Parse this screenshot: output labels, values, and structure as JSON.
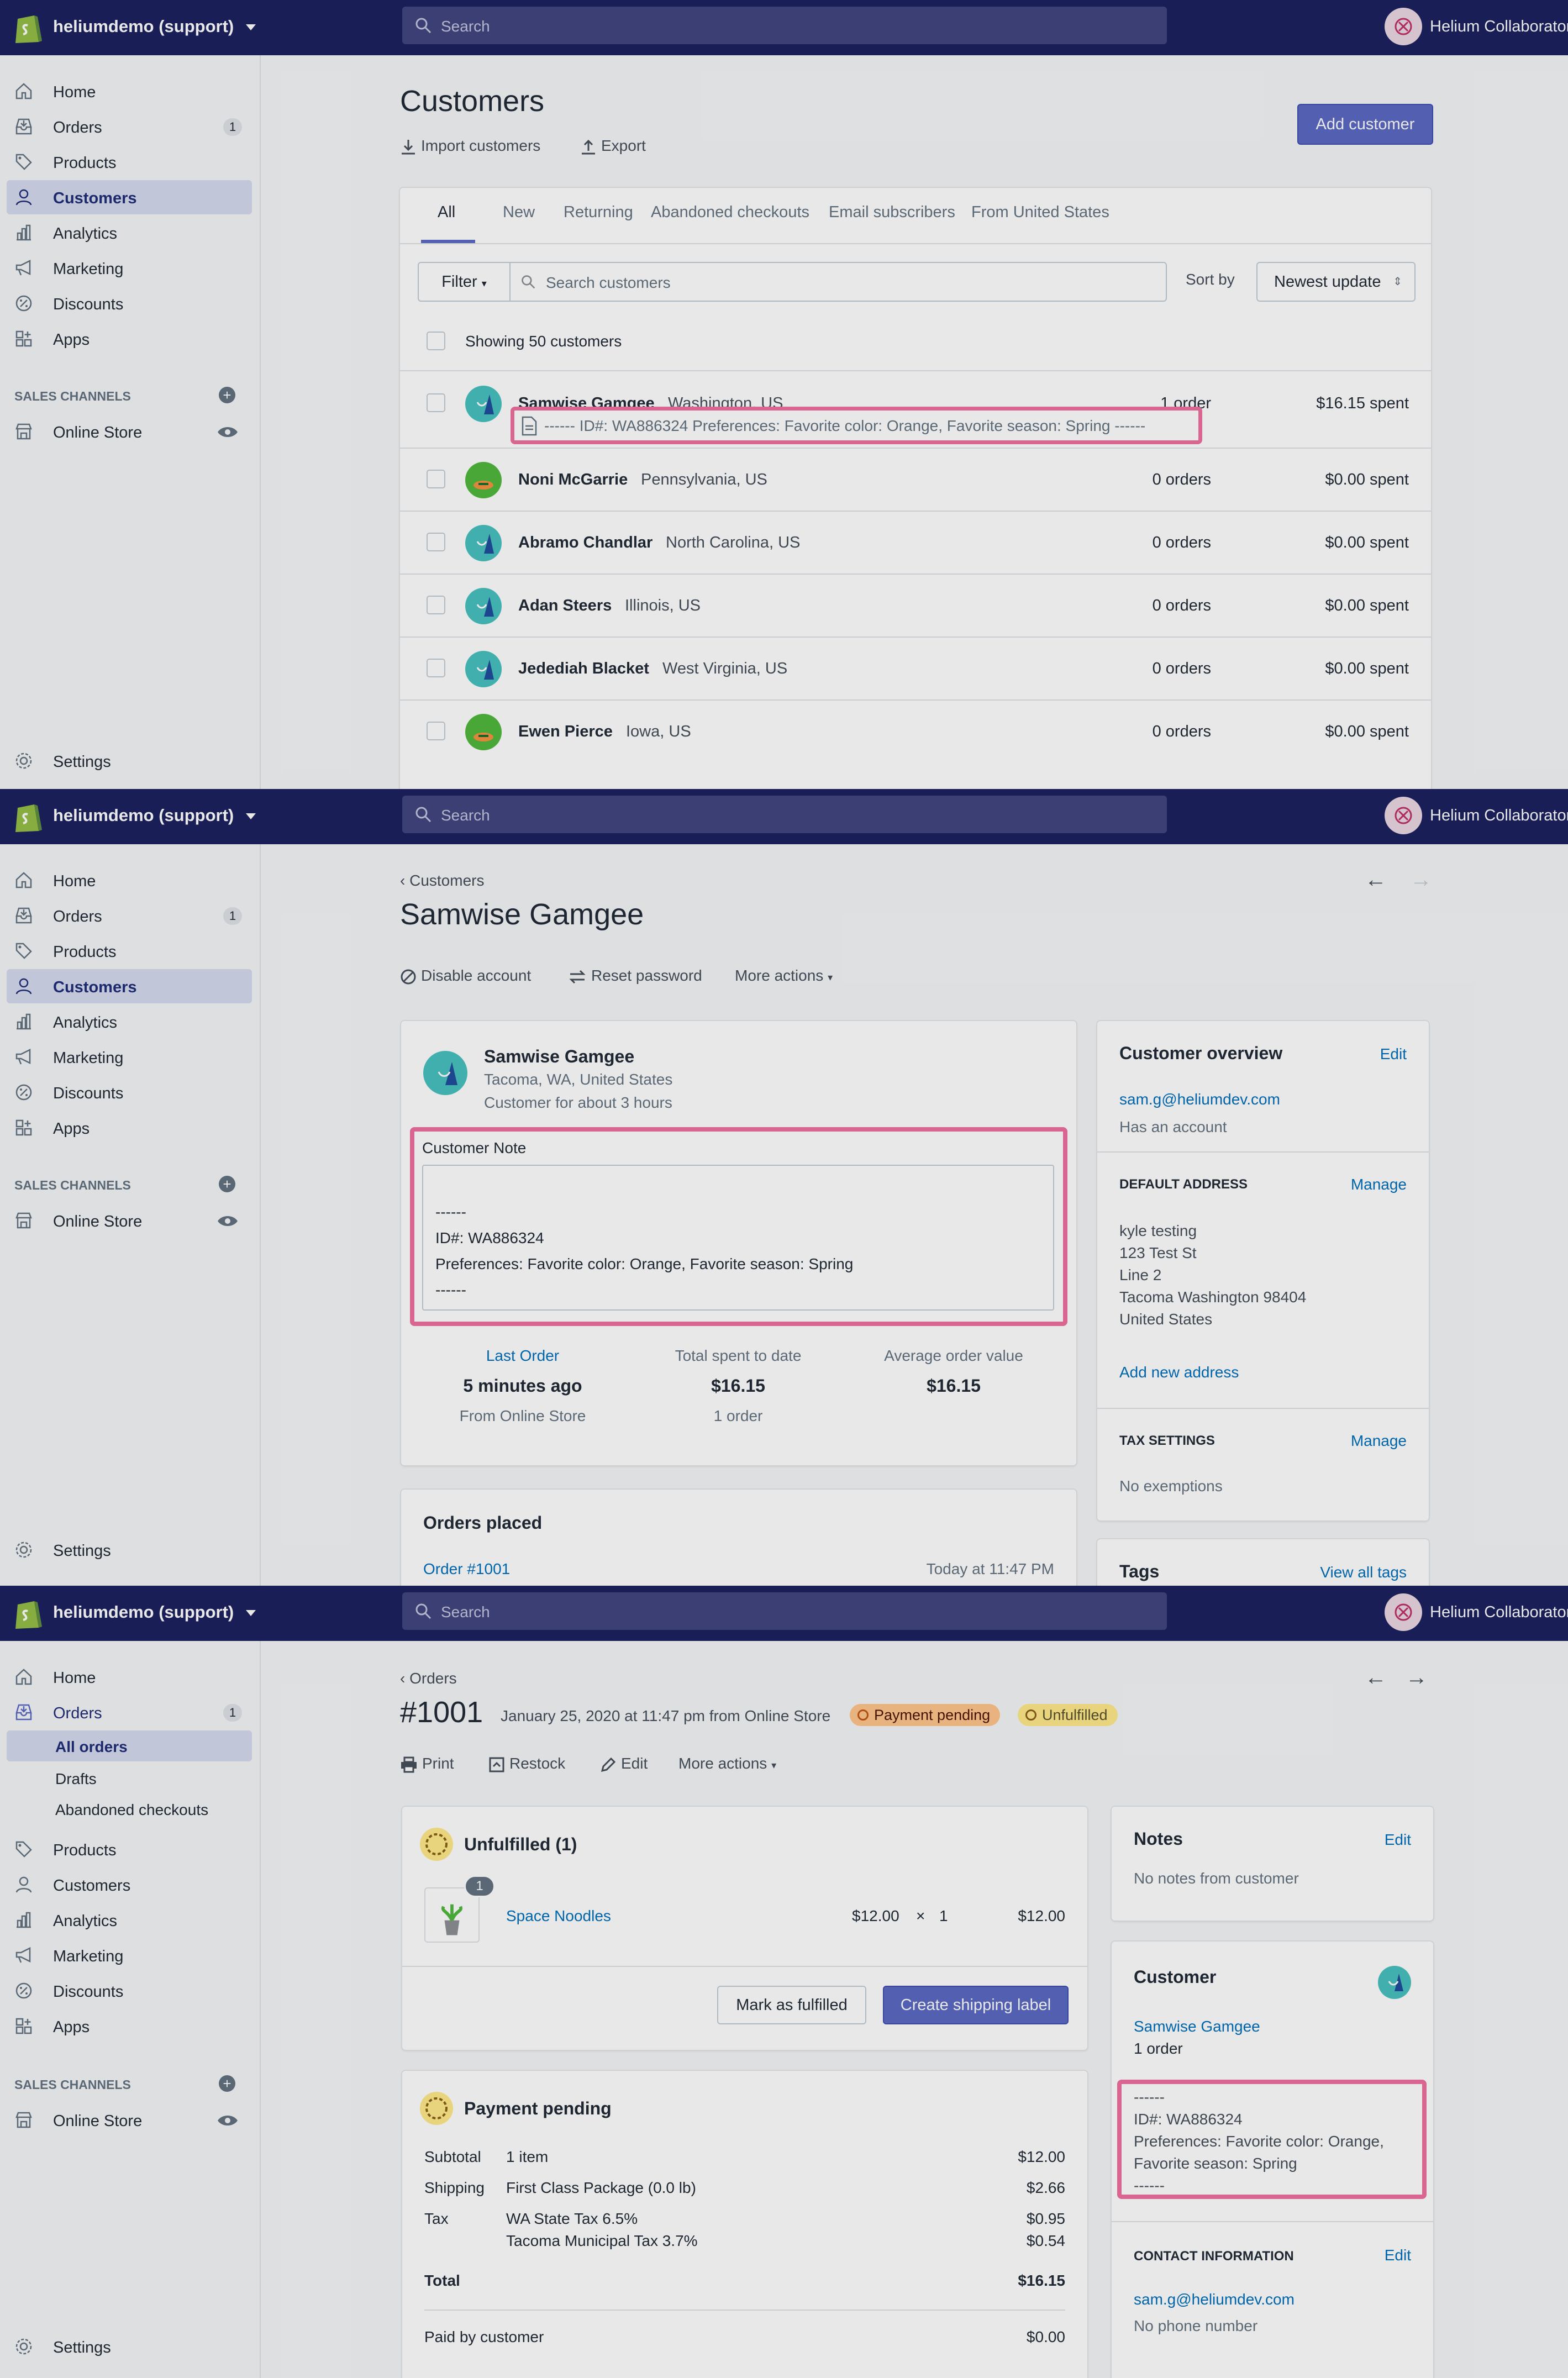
{
  "common": {
    "store_name": "heliumdemo (support)",
    "search_placeholder": "Search",
    "user_name": "Helium Collaborator",
    "sales_channels_heading": "SALES CHANNELS",
    "online_store": "Online Store",
    "settings": "Settings",
    "nav": {
      "home": "Home",
      "orders": "Orders",
      "orders_badge": "1",
      "products": "Products",
      "customers": "Customers",
      "analytics": "Analytics",
      "marketing": "Marketing",
      "discounts": "Discounts",
      "apps": "Apps",
      "all_orders": "All orders",
      "drafts": "Drafts",
      "abandoned_checkouts": "Abandoned checkouts"
    },
    "colors": {
      "topbar": "#1c2260",
      "primary": "#5c6ac4",
      "highlight": "#ef6fa0",
      "link": "#006fbb"
    }
  },
  "customers_list": {
    "title": "Customers",
    "import_label": "Import customers",
    "export_label": "Export",
    "add_button": "Add customer",
    "tabs": [
      "All",
      "New",
      "Returning",
      "Abandoned checkouts",
      "Email subscribers",
      "From United States"
    ],
    "filter_label": "Filter",
    "search_placeholder": "Search customers",
    "sort_by_label": "Sort by",
    "sort_value": "Newest update",
    "showing_text": "Showing 50 customers",
    "note_preview": "------ ID#: WA886324 Preferences: Favorite color: Orange, Favorite season: Spring ------",
    "rows": [
      {
        "name": "Samwise Gamgee",
        "location": "Washington, US",
        "orders": "1 order",
        "spent": "$16.15 spent",
        "avatar": "teal"
      },
      {
        "name": "Noni McGarrie",
        "location": "Pennsylvania, US",
        "orders": "0 orders",
        "spent": "$0.00 spent",
        "avatar": "green"
      },
      {
        "name": "Abramo Chandlar",
        "location": "North Carolina, US",
        "orders": "0 orders",
        "spent": "$0.00 spent",
        "avatar": "teal"
      },
      {
        "name": "Adan Steers",
        "location": "Illinois, US",
        "orders": "0 orders",
        "spent": "$0.00 spent",
        "avatar": "teal"
      },
      {
        "name": "Jedediah Blacket",
        "location": "West Virginia, US",
        "orders": "0 orders",
        "spent": "$0.00 spent",
        "avatar": "teal"
      },
      {
        "name": "Ewen Pierce",
        "location": "Iowa, US",
        "orders": "0 orders",
        "spent": "$0.00 spent",
        "avatar": "green"
      }
    ]
  },
  "customer_detail": {
    "breadcrumb": "Customers",
    "title": "Samwise Gamgee",
    "disable_account": "Disable account",
    "reset_password": "Reset password",
    "more_actions": "More actions",
    "name": "Samwise Gamgee",
    "location": "Tacoma, WA, United States",
    "since": "Customer for about 3 hours",
    "note_label": "Customer Note",
    "note_lines": [
      "------",
      "ID#: WA886324",
      "Preferences: Favorite color: Orange, Favorite season: Spring",
      "------"
    ],
    "stats": [
      {
        "label": "Last Order",
        "value": "5 minutes ago",
        "sub": "From Online Store"
      },
      {
        "label": "Total spent to date",
        "value": "$16.15",
        "sub": "1 order"
      },
      {
        "label": "Average order value",
        "value": "$16.15",
        "sub": ""
      }
    ],
    "orders_placed_title": "Orders placed",
    "order_link": "Order #1001",
    "order_time": "Today at 11:47 PM",
    "overview_title": "Customer overview",
    "edit": "Edit",
    "email": "sam.g@heliumdev.com",
    "has_account": "Has an account",
    "default_address_heading": "DEFAULT ADDRESS",
    "manage": "Manage",
    "address_lines": [
      "kyle testing",
      "123 Test St",
      "Line 2",
      "Tacoma Washington 98404",
      "United States"
    ],
    "add_address": "Add new address",
    "tax_heading": "TAX SETTINGS",
    "no_exemptions": "No exemptions",
    "tags_title": "Tags",
    "view_all_tags": "View all tags"
  },
  "order_detail": {
    "breadcrumb": "Orders",
    "title": "#1001",
    "subtitle": "January 25, 2020 at 11:47 pm from Online Store",
    "payment_badge": "Payment pending",
    "fulfill_badge": "Unfulfilled",
    "print": "Print",
    "restock": "Restock",
    "edit": "Edit",
    "more_actions": "More actions",
    "unfulfilled_title": "Unfulfilled (1)",
    "item_qty_badge": "1",
    "item_name": "Space Noodles",
    "item_price": "$12.00",
    "item_times": "×",
    "item_qty": "1",
    "item_total": "$12.00",
    "mark_fulfilled": "Mark as fulfilled",
    "create_label": "Create shipping label",
    "payment_title": "Payment pending",
    "summary": [
      {
        "label": "Subtotal",
        "desc": "1 item",
        "amount": "$12.00"
      },
      {
        "label": "Shipping",
        "desc": "First Class Package (0.0 lb)",
        "amount": "$2.66"
      },
      {
        "label": "Tax",
        "desc": "WA State Tax 6.5%",
        "amount": "$0.95"
      },
      {
        "label": "",
        "desc": "Tacoma Municipal Tax 3.7%",
        "amount": "$0.54"
      }
    ],
    "total_label": "Total",
    "total_amount": "$16.15",
    "paid_label": "Paid by customer",
    "paid_amount": "$0.00",
    "notes_title": "Notes",
    "notes_edit": "Edit",
    "no_notes": "No notes from customer",
    "customer_title": "Customer",
    "customer_name": "Samwise Gamgee",
    "customer_orders": "1 order",
    "note_lines": [
      "------",
      "ID#: WA886324",
      "Preferences: Favorite color: Orange,",
      "Favorite season: Spring",
      "------"
    ],
    "contact_heading": "CONTACT INFORMATION",
    "contact_edit": "Edit",
    "contact_email": "sam.g@heliumdev.com",
    "no_phone": "No phone number"
  }
}
